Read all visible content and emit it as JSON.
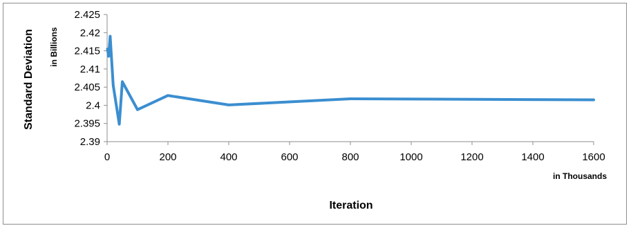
{
  "chart_data": {
    "type": "line",
    "title": "",
    "xlabel": "Iteration",
    "xlabel_unit": "in Thousands",
    "ylabel": "Standard Deviation",
    "ylabel_unit": "in Billions",
    "xlim": [
      0,
      1600
    ],
    "ylim": [
      2.39,
      2.425
    ],
    "xticks": [
      "0",
      "200",
      "400",
      "600",
      "800",
      "1000",
      "1200",
      "1400",
      "1600"
    ],
    "yticks": [
      "2.39",
      "2.395",
      "2.4",
      "2.405",
      "2.41",
      "2.415",
      "2.42",
      "2.425"
    ],
    "grid": false,
    "legend": "none",
    "line_color": "#3b8ed0",
    "series": [
      {
        "x": [
          1,
          5,
          10,
          20,
          40,
          50,
          100,
          200,
          400,
          800,
          1600
        ],
        "y": [
          2.4155,
          2.4135,
          2.419,
          2.4055,
          2.3948,
          2.4065,
          2.3988,
          2.4027,
          2.4001,
          2.4018,
          2.4015
        ]
      }
    ]
  }
}
